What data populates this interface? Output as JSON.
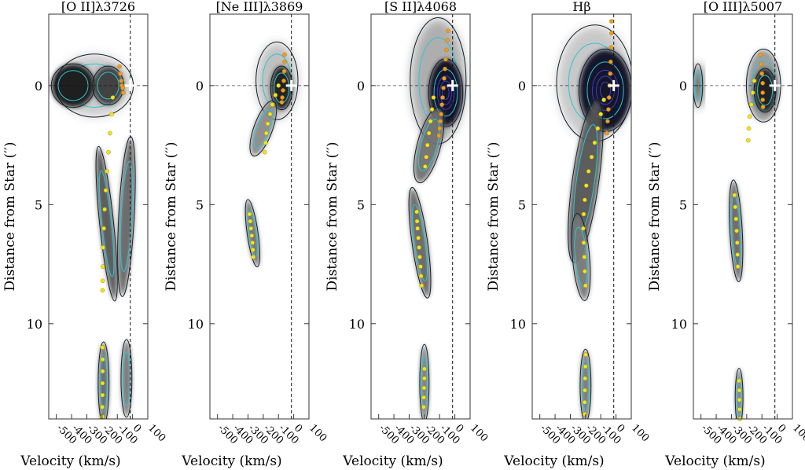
{
  "figure": {
    "ylabel": "Distance from Star (′′)",
    "xlabel": "Velocity (km/s)"
  },
  "chart_data": [
    {
      "type": "scatter",
      "title": "[O II]λ3726",
      "xlabel": "Velocity (km/s)",
      "ylabel": "Distance from Star (′′)",
      "xlim": [
        -550,
        100
      ],
      "ylim": [
        14,
        -3
      ],
      "xticks": [
        "-500",
        "-400",
        "-300",
        "-200",
        "-100",
        "0",
        "100"
      ],
      "yticks": [
        "0",
        "5",
        "10"
      ],
      "star_position": [
        -15,
        0
      ],
      "dashed_velocity": -15,
      "series": [
        {
          "color": "#f2e41b",
          "x": [
            -130,
            -138,
            -148,
            -158,
            -168,
            -176,
            -183,
            -188,
            -193,
            -195,
            -196,
            -197
          ],
          "y": [
            0.5,
            1.2,
            2.0,
            2.8,
            3.6,
            4.4,
            5.2,
            6.0,
            6.8,
            7.6,
            8.2,
            8.6
          ]
        },
        {
          "color": "#f2e41b",
          "x": [
            -197,
            -196,
            -196,
            -197,
            -197,
            -198,
            -198
          ],
          "y": [
            11.0,
            11.5,
            12.0,
            12.5,
            13.0,
            13.5,
            13.9
          ]
        },
        {
          "color": "#f39a21",
          "x": [
            -85,
            -80,
            -75,
            -70,
            -65,
            -60
          ],
          "y": [
            -0.8,
            -0.5,
            -0.2,
            0.0,
            0.1,
            0.3
          ]
        }
      ]
    },
    {
      "type": "scatter",
      "title": "[Ne III]λ3869",
      "xlabel": "Velocity (km/s)",
      "ylabel": "Distance from Star (′′)",
      "xlim": [
        -550,
        100
      ],
      "ylim": [
        14,
        -3
      ],
      "xticks": [
        "-500",
        "-400",
        "-300",
        "-200",
        "-100",
        "0",
        "100"
      ],
      "yticks": [
        "0",
        "5",
        "10"
      ],
      "star_position": [
        -15,
        0
      ],
      "dashed_velocity": -15,
      "series": [
        {
          "color": "#f2e41b",
          "x": [
            -100,
            -120,
            -140,
            -155,
            -170,
            -180,
            -185,
            -190
          ],
          "y": [
            0.0,
            0.4,
            0.8,
            1.2,
            1.6,
            2.0,
            2.4,
            2.8
          ]
        },
        {
          "color": "#f2e41b",
          "x": [
            -290,
            -285,
            -280,
            -275,
            -270,
            -268,
            -265
          ],
          "y": [
            5.4,
            5.7,
            6.0,
            6.3,
            6.6,
            6.9,
            7.2
          ]
        },
        {
          "color": "#f39a21",
          "x": [
            -60,
            -60,
            -62,
            -65,
            -70,
            -75,
            -78
          ],
          "y": [
            -1.3,
            -1.0,
            -0.6,
            -0.2,
            0.2,
            0.5,
            0.7
          ]
        }
      ]
    },
    {
      "type": "scatter",
      "title": "[S II]λ4068",
      "xlabel": "Velocity (km/s)",
      "ylabel": "Distance from Star (′′)",
      "xlim": [
        -550,
        100
      ],
      "ylim": [
        14,
        -3
      ],
      "xticks": [
        "-500",
        "-400",
        "-300",
        "-200",
        "-100",
        "0",
        "100"
      ],
      "yticks": [
        "0",
        "5",
        "10"
      ],
      "star_position": [
        -15,
        0
      ],
      "dashed_velocity": -15,
      "series": [
        {
          "color": "#f2e41b",
          "x": [
            -140,
            -150,
            -160,
            -170,
            -180,
            -188,
            -195
          ],
          "y": [
            0.5,
            1.0,
            1.5,
            2.0,
            2.5,
            3.0,
            3.4
          ]
        },
        {
          "color": "#f2e41b",
          "x": [
            -250,
            -248,
            -245,
            -240,
            -235,
            -230,
            -225,
            -222,
            -218
          ],
          "y": [
            5.3,
            5.7,
            6.0,
            6.4,
            6.8,
            7.2,
            7.6,
            8.0,
            8.4
          ]
        },
        {
          "color": "#f2e41b",
          "x": [
            -200,
            -200,
            -202,
            -204,
            -205
          ],
          "y": [
            11.9,
            12.3,
            12.7,
            13.1,
            13.5
          ]
        },
        {
          "color": "#f39a21",
          "x": [
            -45,
            -50,
            -55,
            -60,
            -65,
            -70,
            -75,
            -80,
            -85,
            -90,
            -95,
            -100,
            -105
          ],
          "y": [
            -2.3,
            -1.9,
            -1.5,
            -1.1,
            -0.7,
            -0.3,
            0.1,
            0.5,
            0.8,
            1.2,
            1.5,
            1.8,
            2.1
          ]
        }
      ]
    },
    {
      "type": "scatter",
      "title": "Hβ",
      "xlabel": "Velocity (km/s)",
      "ylabel": "Distance from Star (′′)",
      "xlim": [
        -550,
        100
      ],
      "ylim": [
        14,
        -3
      ],
      "xticks": [
        "-500",
        "-400",
        "-300",
        "-200",
        "-100",
        "0",
        "100"
      ],
      "yticks": [
        "0",
        "5",
        "10"
      ],
      "star_position": [
        -15,
        0
      ],
      "dashed_velocity": -15,
      "series": [
        {
          "color": "#f2e41b",
          "x": [
            -80,
            -100,
            -120,
            -140,
            -160,
            -180,
            -195,
            -205,
            -212,
            -215,
            -212,
            -208,
            -205,
            -200
          ],
          "y": [
            0.6,
            1.2,
            1.8,
            2.4,
            3.0,
            3.6,
            4.2,
            4.8,
            5.4,
            6.0,
            6.6,
            7.2,
            7.8,
            8.4
          ]
        },
        {
          "color": "#f2e41b",
          "x": [
            -200,
            -201,
            -203,
            -204,
            -205,
            -206
          ],
          "y": [
            11.3,
            11.8,
            12.3,
            12.8,
            13.3,
            13.8
          ]
        },
        {
          "color": "#f39a21",
          "x": [
            -30,
            -30,
            -32,
            -35,
            -38,
            -42,
            -46,
            -50,
            -55,
            -60
          ],
          "y": [
            -2.7,
            -2.2,
            -1.6,
            -1.0,
            -0.5,
            0.0,
            0.5,
            1.0,
            1.5,
            2.0
          ]
        }
      ]
    },
    {
      "type": "scatter",
      "title": "[O III]λ5007",
      "xlabel": "Velocity (km/s)",
      "ylabel": "Distance from Star (′′)",
      "xlim": [
        -550,
        100
      ],
      "ylim": [
        14,
        -3
      ],
      "xticks": [
        "-500",
        "-400",
        "-300",
        "-200",
        "-100",
        "0",
        "100"
      ],
      "yticks": [
        "0",
        "5",
        "10"
      ],
      "star_position": [
        -15,
        0
      ],
      "dashed_velocity": -15,
      "series": [
        {
          "color": "#f2e41b",
          "x": [
            -150,
            -160,
            -170,
            -180,
            -186,
            -190
          ],
          "y": [
            -0.2,
            0.3,
            0.8,
            1.3,
            1.8,
            2.3
          ]
        },
        {
          "color": "#f2e41b",
          "x": [
            -280,
            -275,
            -270,
            -266,
            -262,
            -260,
            -258
          ],
          "y": [
            4.6,
            5.1,
            5.6,
            6.1,
            6.6,
            7.1,
            7.6
          ]
        },
        {
          "color": "#f2e41b",
          "x": [
            -250,
            -248,
            -247,
            -246,
            -245
          ],
          "y": [
            12.4,
            12.8,
            13.2,
            13.6,
            14.0
          ]
        },
        {
          "color": "#f39a21",
          "x": [
            -110,
            -105,
            -100,
            -95,
            -95,
            -95,
            -93
          ],
          "y": [
            -1.3,
            -0.9,
            -0.5,
            -0.1,
            0.3,
            0.6,
            0.9
          ]
        }
      ]
    }
  ]
}
